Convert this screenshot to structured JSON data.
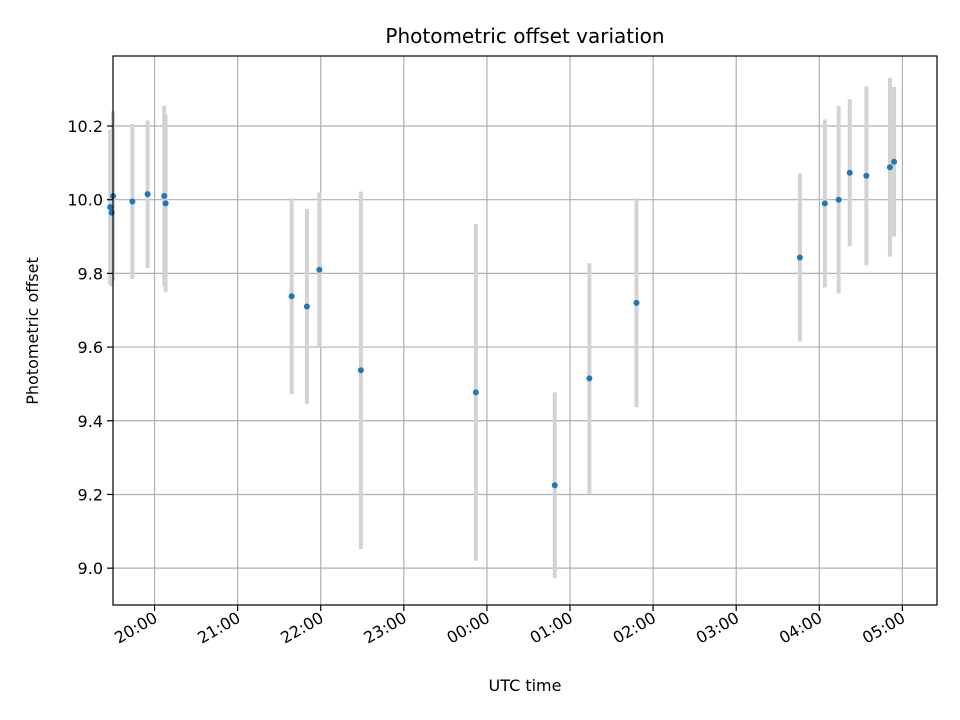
{
  "chart_data": {
    "type": "scatter",
    "title": "Photometric offset variation",
    "xlabel": "UTC time",
    "ylabel": "Photometric offset",
    "x_unit": "UTC clock time (hh:mm), spanning midnight",
    "xlim": [
      "19:30",
      "05:25"
    ],
    "ylim": [
      8.9,
      10.39
    ],
    "grid": true,
    "x_ticks": [
      "20:00",
      "21:00",
      "22:00",
      "23:00",
      "00:00",
      "01:00",
      "02:00",
      "03:00",
      "04:00",
      "05:00"
    ],
    "y_ticks": [
      9.0,
      9.2,
      9.4,
      9.6,
      9.8,
      10.0,
      10.2
    ],
    "y_tick_labels": [
      "9.0",
      "9.2",
      "9.4",
      "9.6",
      "9.8",
      "10.0",
      "10.2"
    ],
    "series": [
      {
        "marker_color": "#1f77b4",
        "errorbar_color": "#d3d3d3",
        "points": [
          {
            "x": "19:28",
            "y": 9.98,
            "yerr": 0.21
          },
          {
            "x": "19:29",
            "y": 9.965,
            "yerr": 0.2
          },
          {
            "x": "19:30",
            "y": 10.01,
            "yerr": 0.23
          },
          {
            "x": "19:44",
            "y": 9.995,
            "yerr": 0.21
          },
          {
            "x": "19:55",
            "y": 10.015,
            "yerr": 0.2
          },
          {
            "x": "20:07",
            "y": 10.01,
            "yerr": 0.245
          },
          {
            "x": "20:08",
            "y": 9.99,
            "yerr": 0.24
          },
          {
            "x": "21:39",
            "y": 9.738,
            "yerr": 0.265
          },
          {
            "x": "21:50",
            "y": 9.71,
            "yerr": 0.265
          },
          {
            "x": "21:59",
            "y": 9.81,
            "yerr": 0.21
          },
          {
            "x": "22:29",
            "y": 9.537,
            "yerr": 0.485
          },
          {
            "x": "23:52",
            "y": 9.477,
            "yerr": 0.457
          },
          {
            "x": "00:49",
            "y": 9.225,
            "yerr": 0.252
          },
          {
            "x": "01:14",
            "y": 9.515,
            "yerr": 0.313
          },
          {
            "x": "01:48",
            "y": 9.72,
            "yerr": 0.283
          },
          {
            "x": "03:46",
            "y": 9.843,
            "yerr": 0.228
          },
          {
            "x": "04:04",
            "y": 9.99,
            "yerr": 0.228
          },
          {
            "x": "04:14",
            "y": 10.0,
            "yerr": 0.255
          },
          {
            "x": "04:22",
            "y": 10.073,
            "yerr": 0.2
          },
          {
            "x": "04:34",
            "y": 10.065,
            "yerr": 0.243
          },
          {
            "x": "04:51",
            "y": 10.088,
            "yerr": 0.243
          },
          {
            "x": "04:54",
            "y": 10.103,
            "yerr": 0.203
          }
        ]
      }
    ]
  }
}
